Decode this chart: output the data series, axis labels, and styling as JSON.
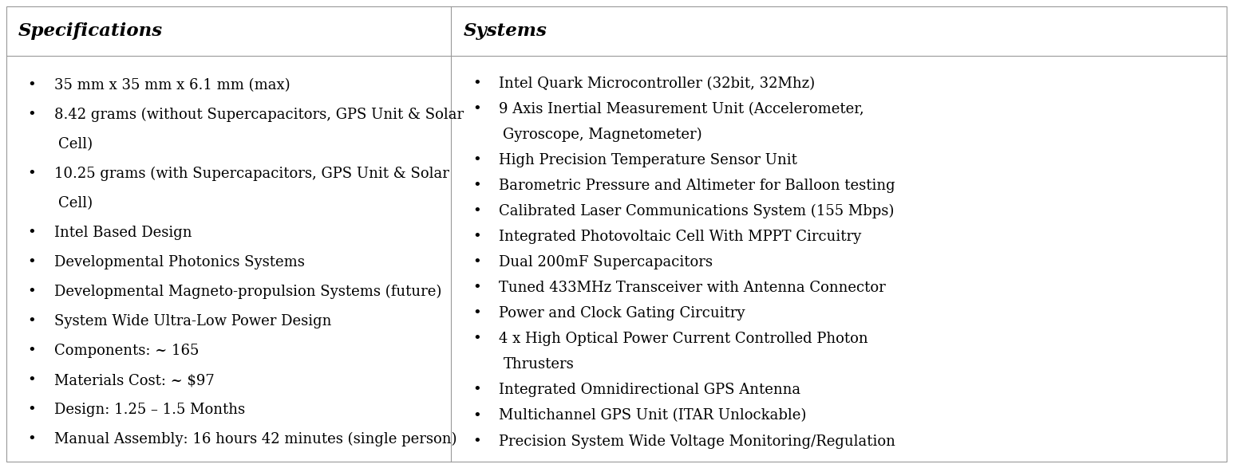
{
  "col1_header": "Specifications",
  "col2_header": "Systems",
  "background_color": "#ffffff",
  "border_color": "#999999",
  "text_color": "#000000",
  "header_fontsize": 16.5,
  "body_fontsize": 13.0,
  "col_split": 0.366,
  "col1_lines": [
    [
      "35 mm x 35 mm x 6.1 mm (max)"
    ],
    [
      "8.42 grams (without Supercapacitors, GPS Unit & Solar",
      "Cell)"
    ],
    [
      "10.25 grams (with Supercapacitors, GPS Unit & Solar",
      "Cell)"
    ],
    [
      "Intel Based Design"
    ],
    [
      "Developmental Photonics Systems"
    ],
    [
      "Developmental Magneto-propulsion Systems (future)"
    ],
    [
      "System Wide Ultra-Low Power Design"
    ],
    [
      "Components: ~ 165"
    ],
    [
      "Materials Cost: ~ $97"
    ],
    [
      "Design: 1.25 – 1.5 Months"
    ],
    [
      "Manual Assembly: 16 hours 42 minutes (single person)"
    ]
  ],
  "col2_lines": [
    [
      "Intel Quark Microcontroller (32bit, 32Mhz)"
    ],
    [
      "9 Axis Inertial Measurement Unit (Accelerometer,",
      "Gyroscope, Magnetometer)"
    ],
    [
      "High Precision Temperature Sensor Unit"
    ],
    [
      "Barometric Pressure and Altimeter for Balloon testing"
    ],
    [
      "Calibrated Laser Communications System (155 Mbps)"
    ],
    [
      "Integrated Photovoltaic Cell With MPPT Circuitry"
    ],
    [
      "Dual 200mF Supercapacitors"
    ],
    [
      "Tuned 433MHz Transceiver with Antenna Connector"
    ],
    [
      "Power and Clock Gating Circuitry"
    ],
    [
      "4 x High Optical Power Current Controlled Photon",
      "Thrusters"
    ],
    [
      "Integrated Omnidirectional GPS Antenna"
    ],
    [
      "Multichannel GPS Unit (ITAR Unlockable)"
    ],
    [
      "Precision System Wide Voltage Monitoring/Regulation"
    ]
  ]
}
